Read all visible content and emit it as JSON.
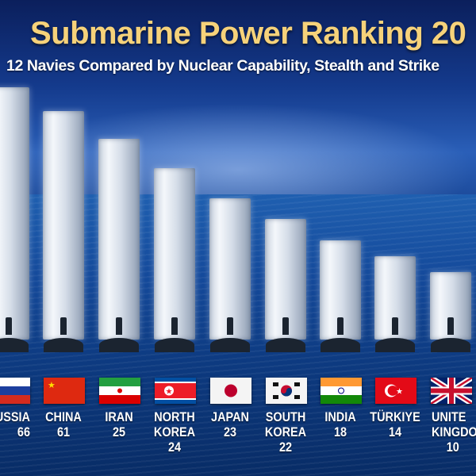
{
  "title": "Submarine Power Ranking 20",
  "subtitle": "12 Navies Compared by Nuclear Capability, Stealth and Strike",
  "chart_data": {
    "type": "bar",
    "title": "Submarine Power Ranking 20",
    "subtitle": "12 Navies Compared by Nuclear Capability, Stealth and Strike",
    "categories": [
      [
        "USSIA"
      ],
      [
        "CHINA"
      ],
      [
        "IRAN"
      ],
      [
        "NORTH",
        "KOREA"
      ],
      [
        "JAPAN"
      ],
      [
        "SOUTH",
        "KOREA"
      ],
      [
        "INDIA"
      ],
      [
        "TÜRKIYE"
      ],
      [
        "UNITE",
        "KINGDO"
      ]
    ],
    "values": [
      "66",
      "61",
      "25",
      "24",
      "23",
      "22",
      "18",
      "14",
      "10"
    ],
    "flags": [
      "russia-flag",
      "china-flag",
      "iran-flag",
      "north-korea-flag",
      "japan-flag",
      "south-korea-flag",
      "india-flag",
      "turkiye-flag",
      "united-kingdom-flag"
    ],
    "bar_color": "#e8edf4",
    "title_color": "#f6d27a"
  }
}
